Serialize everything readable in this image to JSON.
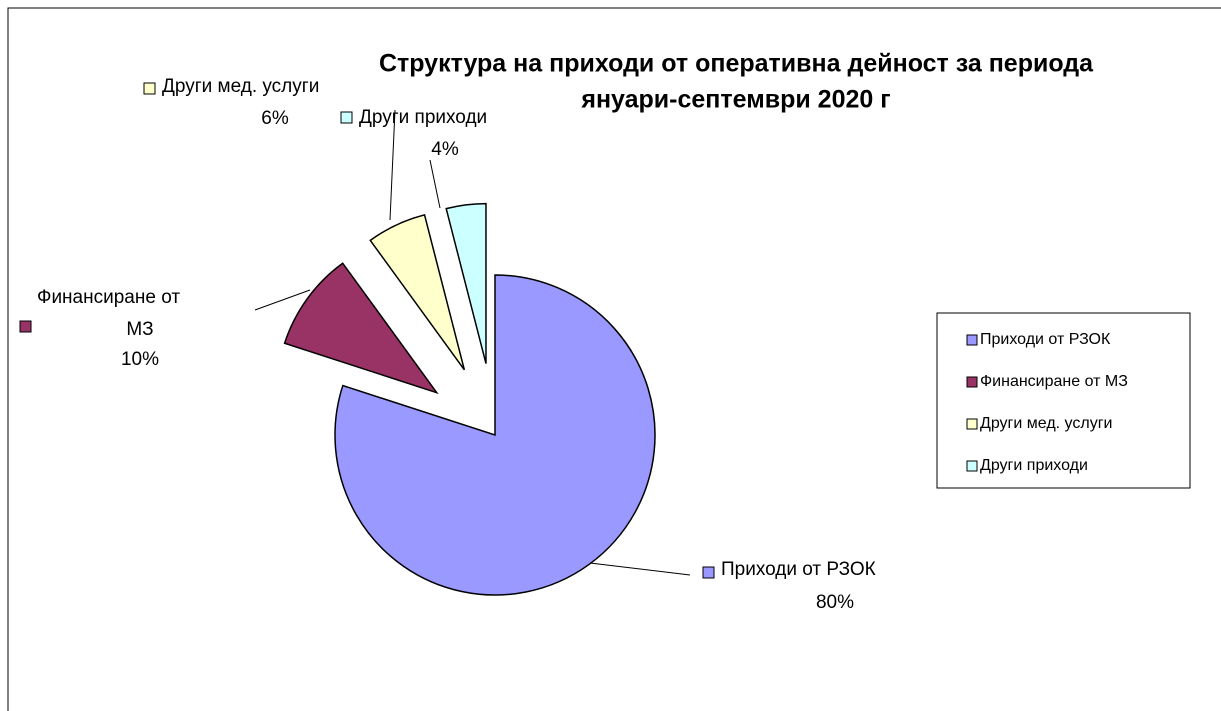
{
  "chart_data": {
    "type": "pie",
    "title": [
      "Структура на  приходи от оперативна дейност за периода",
      "януари-септември 2020 г"
    ],
    "categories": [
      "Приходи от РЗОК",
      "Финансиране от МЗ",
      "Други мед. услуги",
      "Други приходи"
    ],
    "values": [
      80,
      10,
      6,
      4
    ],
    "value_labels": [
      "80%",
      "10%",
      "6%",
      "4%"
    ],
    "colors": [
      "#9999ff",
      "#993366",
      "#ffffcc",
      "#ccffff"
    ],
    "legend": "right"
  }
}
